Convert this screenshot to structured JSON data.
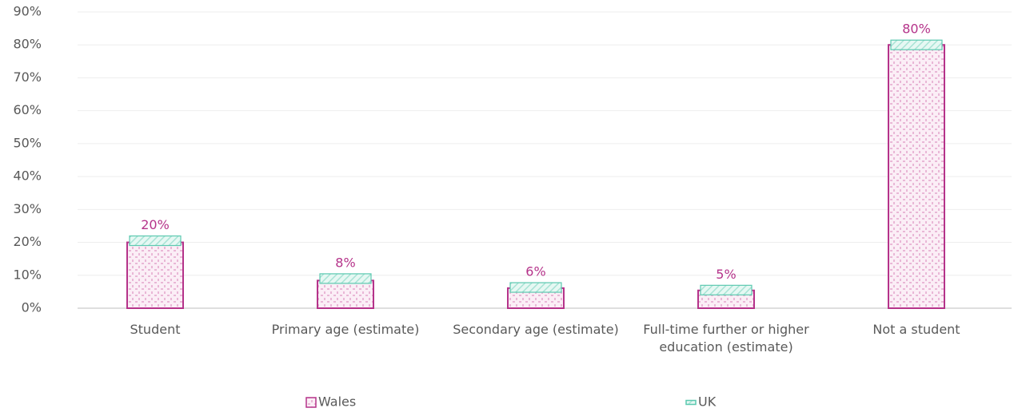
{
  "chart_data": {
    "type": "bar",
    "categories": [
      "Student",
      "Primary age (estimate)",
      "Secondary age (estimate)",
      "Full-time further or higher education (estimate)",
      "Not a student"
    ],
    "series": [
      {
        "name": "Wales",
        "color": "#b5338a",
        "values": [
          20,
          8.4,
          6.1,
          5.4,
          80
        ],
        "value_labels": [
          "20%",
          "8%",
          "6%",
          "5%",
          "80%"
        ]
      },
      {
        "name": "UK",
        "color": "#5cc9b0",
        "values": [
          20.5,
          9.0,
          6.3,
          5.5,
          80
        ]
      }
    ],
    "ylim": [
      0,
      90
    ],
    "yticks": [
      {
        "value": 0,
        "label": "0%"
      },
      {
        "value": 10,
        "label": "10%"
      },
      {
        "value": 20,
        "label": "20%"
      },
      {
        "value": 30,
        "label": "30%"
      },
      {
        "value": 40,
        "label": "40%"
      },
      {
        "value": 50,
        "label": "50%"
      },
      {
        "value": 60,
        "label": "60%"
      },
      {
        "value": 70,
        "label": "70%"
      },
      {
        "value": 80,
        "label": "80%"
      },
      {
        "value": 90,
        "label": "90%"
      }
    ],
    "grid": true
  }
}
